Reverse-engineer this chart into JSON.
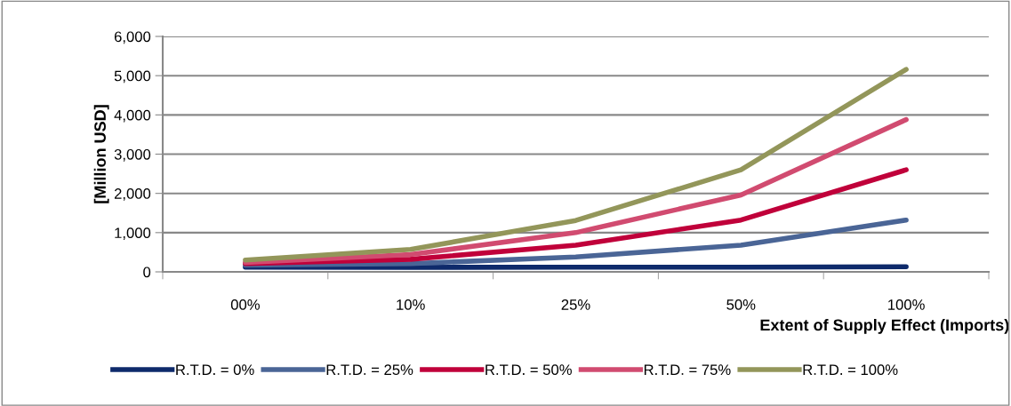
{
  "chart_data": {
    "type": "line",
    "xlabel": "Extent of Supply Effect (Imports)",
    "ylabel": "[Million USD]",
    "categories": [
      "00%",
      "10%",
      "25%",
      "50%",
      "100%"
    ],
    "series": [
      {
        "name": "R.T.D. = 0%",
        "color": "#0e2a6b",
        "values": [
          120,
          115,
          120,
          120,
          130
        ]
      },
      {
        "name": "R.T.D. = 25%",
        "color": "#4a6596",
        "values": [
          170,
          210,
          380,
          680,
          1320
        ]
      },
      {
        "name": "R.T.D. = 50%",
        "color": "#c0003a",
        "values": [
          210,
          320,
          680,
          1320,
          2600
        ]
      },
      {
        "name": "R.T.D. = 75%",
        "color": "#d14b70",
        "values": [
          240,
          440,
          1000,
          1960,
          3880
        ]
      },
      {
        "name": "R.T.D. = 100%",
        "color": "#93965a",
        "values": [
          300,
          570,
          1310,
          2600,
          5160
        ]
      }
    ],
    "ylim": [
      0,
      6000
    ],
    "yticks": [
      {
        "value": 0,
        "label": "0"
      },
      {
        "value": 1000,
        "label": "1,000"
      },
      {
        "value": 2000,
        "label": "2,000"
      },
      {
        "value": 3000,
        "label": "3,000"
      },
      {
        "value": 4000,
        "label": "4,000"
      },
      {
        "value": 5000,
        "label": "5,000"
      },
      {
        "value": 6000,
        "label": "6,000"
      }
    ],
    "grid": "y",
    "legend": "bottom",
    "marker": "none",
    "line_style": "solid"
  }
}
